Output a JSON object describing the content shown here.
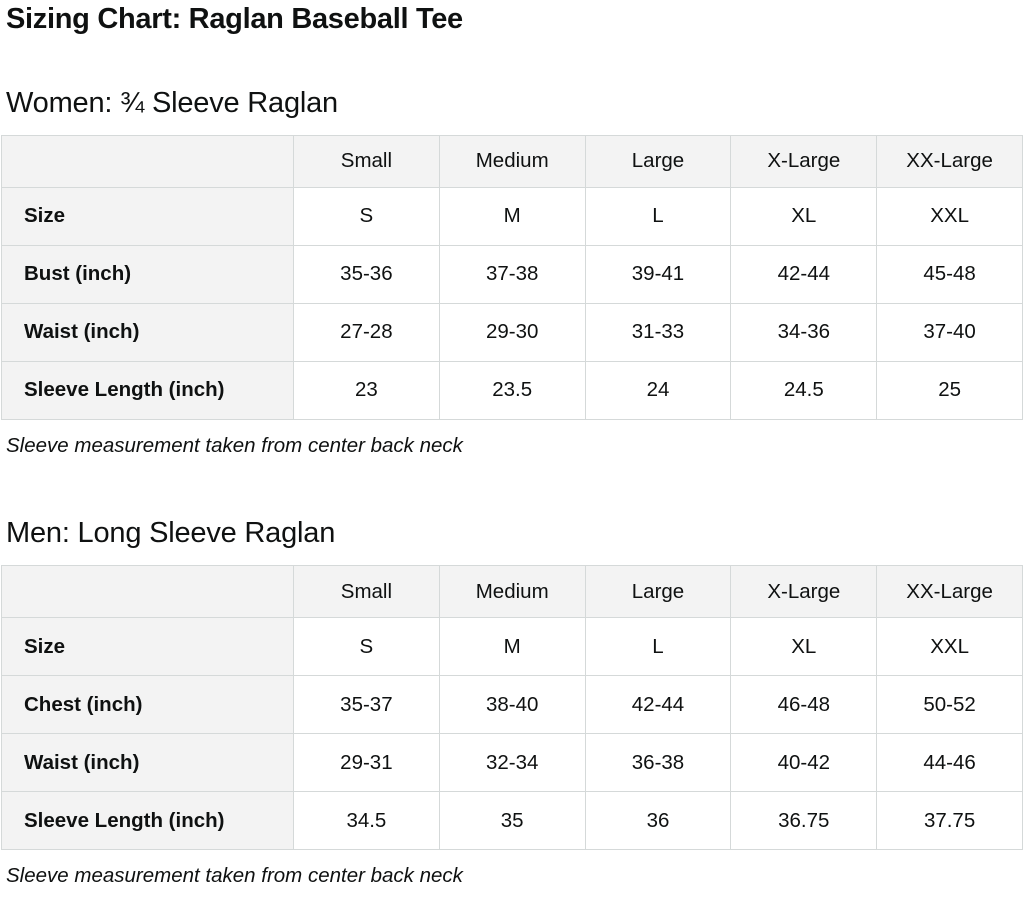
{
  "page_title": "Sizing Chart: Raglan Baseball Tee",
  "colors": {
    "text": "#0f1111",
    "table_border": "#d5d9d9",
    "header_background": "#f3f3f3",
    "cell_background": "#ffffff"
  },
  "sections": [
    {
      "heading": "Women: ¾ Sleeve Raglan",
      "columns": [
        "",
        "Small",
        "Medium",
        "Large",
        "X-Large",
        "XX-Large"
      ],
      "rows": [
        [
          "Size",
          "S",
          "M",
          "L",
          "XL",
          "XXL"
        ],
        [
          "Bust (inch)",
          "35-36",
          "37-38",
          "39-41",
          "42-44",
          "45-48"
        ],
        [
          "Waist (inch)",
          "27-28",
          "29-30",
          "31-33",
          "34-36",
          "37-40"
        ],
        [
          "Sleeve Length (inch)",
          "23",
          "23.5",
          "24",
          "24.5",
          "25"
        ],
        [
          "",
          "",
          "",
          "",
          "",
          ""
        ]
      ],
      "note": "Sleeve measurement taken from center back neck"
    },
    {
      "heading": "Men: Long Sleeve Raglan",
      "columns": [
        "",
        "Small",
        "Medium",
        "Large",
        "X-Large",
        "XX-Large"
      ],
      "rows": [
        [
          "Size",
          "S",
          "M",
          "L",
          "XL",
          "XXL"
        ],
        [
          "Chest (inch)",
          "35-37",
          "38-40",
          "42-44",
          "46-48",
          "50-52"
        ],
        [
          "Waist (inch)",
          "29-31",
          "32-34",
          "36-38",
          "40-42",
          "44-46"
        ],
        [
          "Sleeve Length (inch)",
          "34.5",
          "35",
          "36",
          "36.75",
          "37.75"
        ],
        [
          "",
          "",
          "",
          "",
          "",
          ""
        ]
      ],
      "note": "Sleeve measurement taken from center back neck"
    }
  ]
}
